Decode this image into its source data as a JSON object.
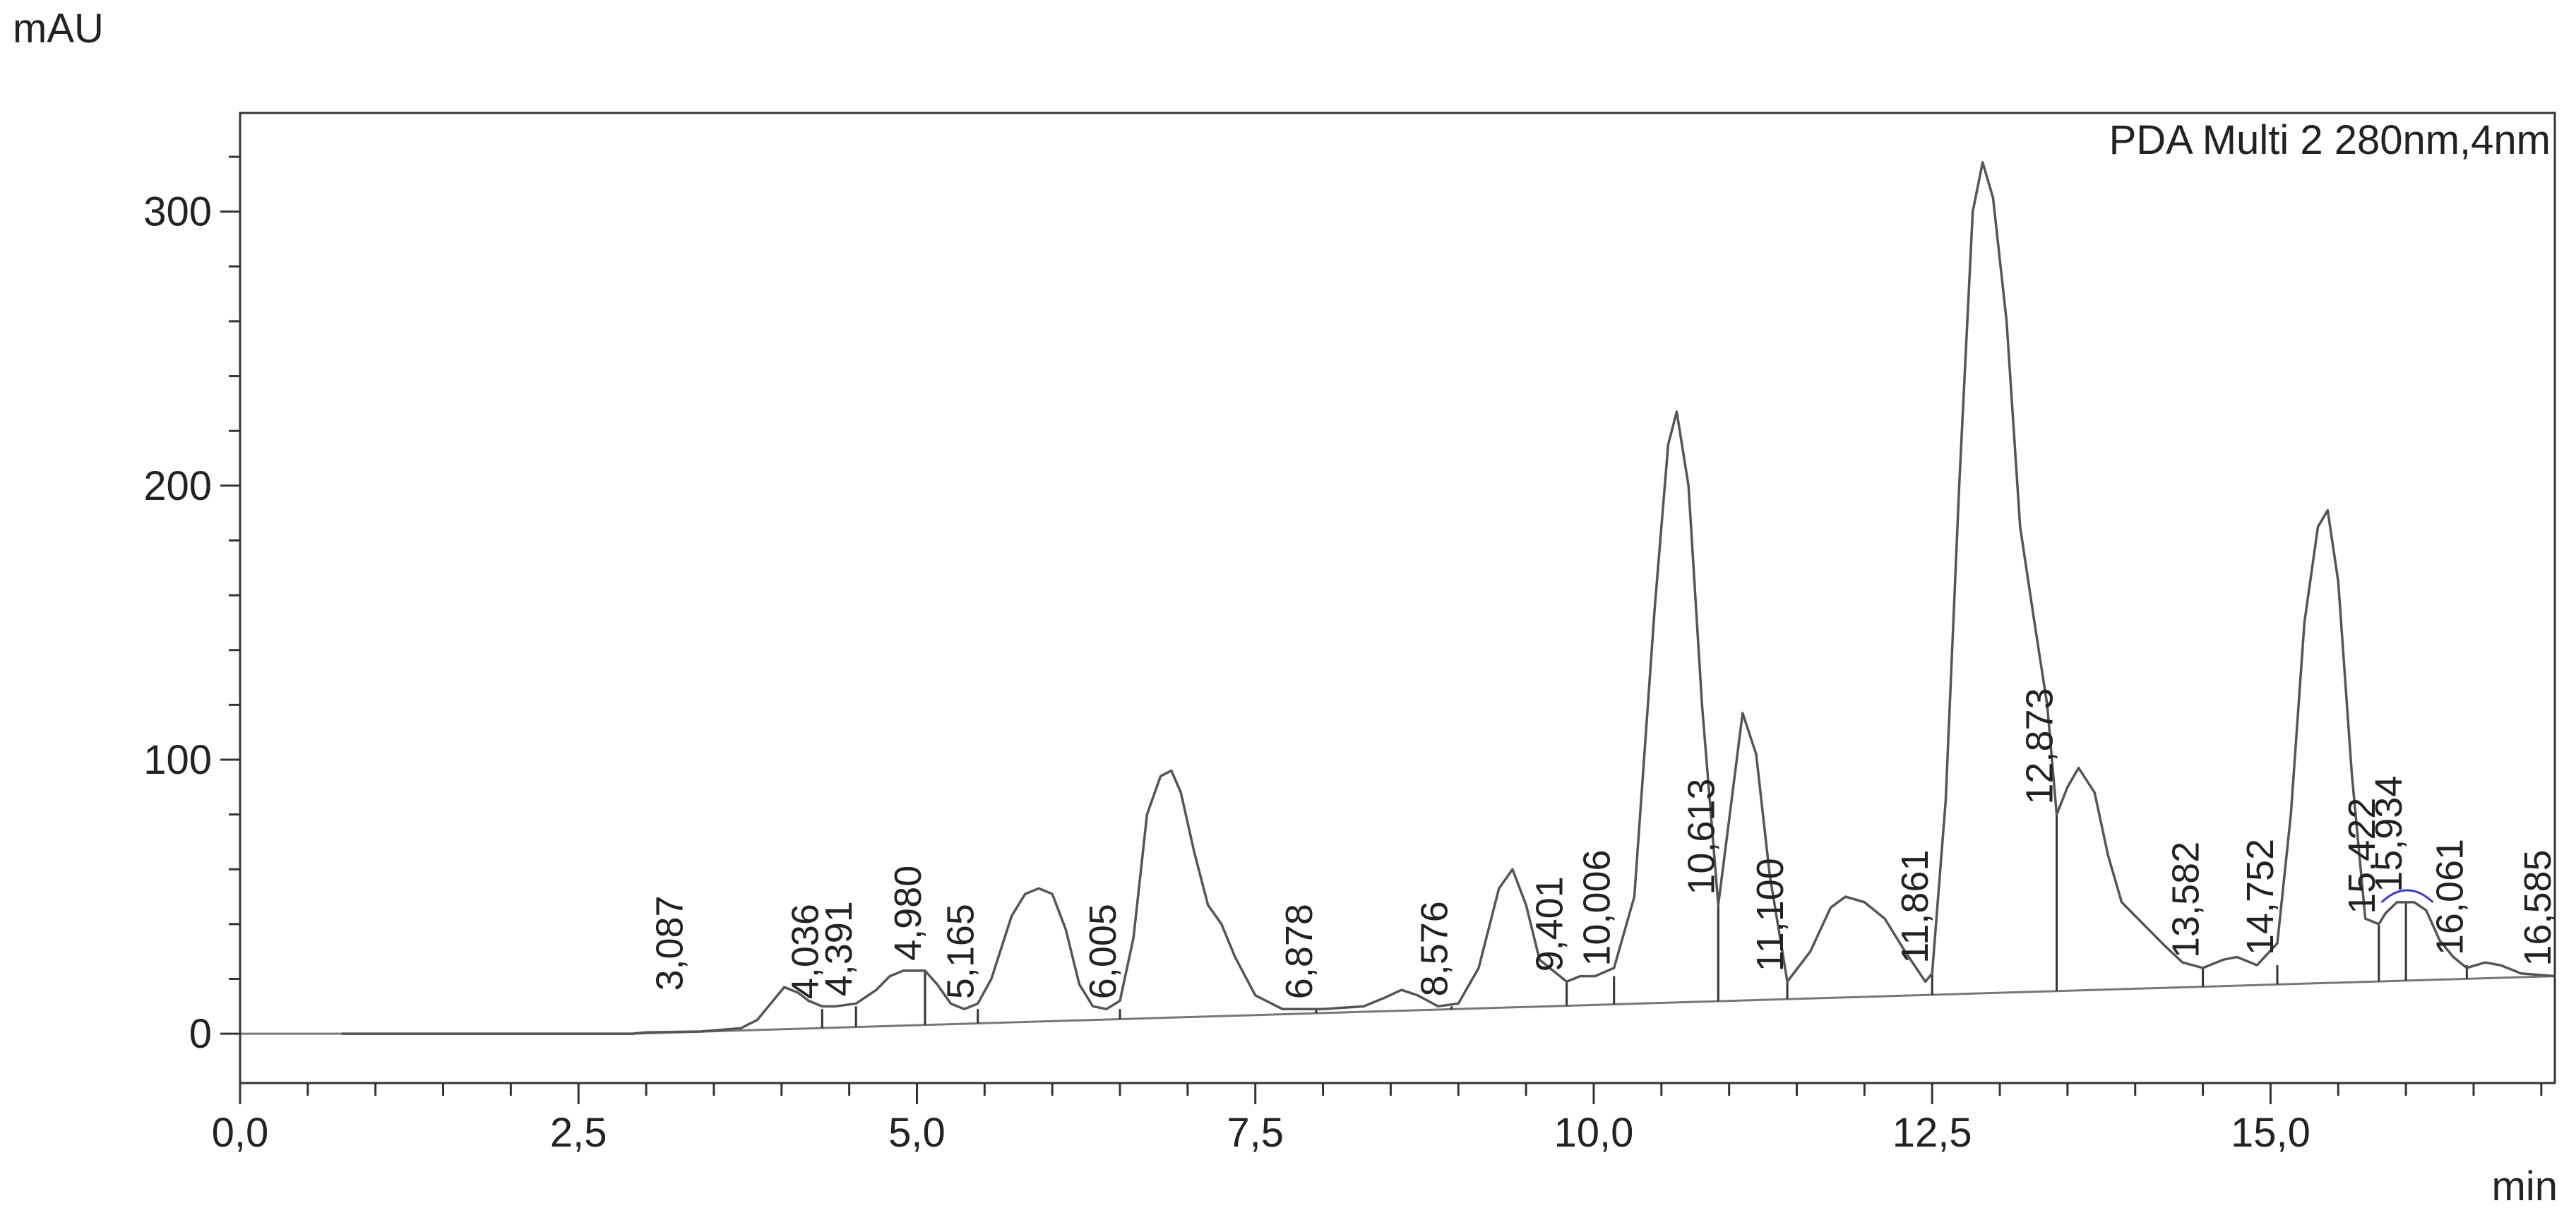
{
  "chart_data": {
    "type": "line",
    "y_unit": "mAU",
    "x_unit": "min",
    "legend": "PDA Multi 2 280nm,4nm",
    "xlim": [
      0.0,
      17.1
    ],
    "ylim": [
      -18,
      336
    ],
    "x_ticks": [
      {
        "value": 0.0,
        "label": "0,0"
      },
      {
        "value": 2.5,
        "label": "2,5"
      },
      {
        "value": 5.0,
        "label": "5,0"
      },
      {
        "value": 7.5,
        "label": "7,5"
      },
      {
        "value": 10.0,
        "label": "10,0"
      },
      {
        "value": 12.5,
        "label": "12,5"
      },
      {
        "value": 15.0,
        "label": "15,0"
      }
    ],
    "y_ticks": [
      {
        "value": 0,
        "label": "0"
      },
      {
        "value": 100,
        "label": "100"
      },
      {
        "value": 200,
        "label": "200"
      },
      {
        "value": 300,
        "label": "300"
      }
    ],
    "baseline": {
      "x": [
        0.0,
        2.9,
        17.1
      ],
      "y": [
        0.0,
        0.0,
        21.0
      ]
    },
    "series": [
      {
        "color": "#555555",
        "x": [
          0.75,
          2.9,
          3.0,
          3.4,
          3.7,
          3.82,
          3.92,
          4.02,
          4.12,
          4.2,
          4.3,
          4.4,
          4.55,
          4.7,
          4.8,
          4.9,
          4.98,
          5.06,
          5.15,
          5.25,
          5.35,
          5.45,
          5.55,
          5.7,
          5.8,
          5.9,
          6.0,
          6.1,
          6.2,
          6.3,
          6.4,
          6.5,
          6.6,
          6.7,
          6.8,
          6.88,
          6.95,
          7.05,
          7.15,
          7.25,
          7.35,
          7.5,
          7.7,
          8.0,
          8.3,
          8.45,
          8.58,
          8.7,
          8.85,
          9.0,
          9.15,
          9.3,
          9.4,
          9.5,
          9.6,
          9.8,
          9.9,
          10.01,
          10.15,
          10.3,
          10.45,
          10.55,
          10.613,
          10.7,
          10.8,
          10.92,
          11.0,
          11.1,
          11.2,
          11.3,
          11.43,
          11.6,
          11.75,
          11.86,
          12.0,
          12.15,
          12.3,
          12.45,
          12.5,
          12.6,
          12.7,
          12.8,
          12.873,
          12.95,
          13.05,
          13.15,
          13.25,
          13.35,
          13.42,
          13.5,
          13.582,
          13.7,
          13.8,
          13.9,
          14.0,
          14.2,
          14.35,
          14.5,
          14.65,
          14.752,
          14.9,
          15.05,
          15.15,
          15.25,
          15.35,
          15.422,
          15.5,
          15.6,
          15.7,
          15.8,
          15.85,
          15.934,
          16.0,
          16.061,
          16.15,
          16.25,
          16.35,
          16.45,
          16.585,
          16.7,
          16.85,
          17.1
        ],
        "y": [
          0,
          0,
          0.5,
          0.8,
          2,
          5,
          11,
          17,
          15,
          12,
          10,
          10,
          11,
          16,
          21,
          23,
          23,
          23,
          18,
          11,
          9,
          11,
          20,
          43,
          51,
          53,
          51,
          38,
          18,
          10,
          9,
          12,
          35,
          80,
          94,
          96,
          88,
          66,
          47,
          40,
          28,
          14,
          9,
          9,
          10,
          13,
          16,
          14,
          10,
          11,
          24,
          53,
          60,
          47,
          27,
          19,
          21,
          21,
          24,
          50,
          155,
          215,
          227,
          200,
          120,
          47,
          78,
          117,
          102,
          58,
          19,
          30,
          46,
          50,
          48,
          42,
          30,
          19,
          22,
          85,
          200,
          300,
          318,
          305,
          260,
          185,
          152,
          120,
          80,
          90,
          97,
          88,
          65,
          48,
          43,
          33,
          26,
          24,
          27,
          28,
          25,
          33,
          80,
          150,
          185,
          191,
          165,
          95,
          42,
          40,
          44,
          48,
          48,
          48,
          45,
          34,
          28,
          24,
          26,
          25,
          22,
          21
        ]
      }
    ],
    "peak_labels": [
      {
        "label": "3,087",
        "x": 3.3,
        "y": 12,
        "drop_line": false
      },
      {
        "label": "4,036",
        "x": 4.3,
        "y": 9,
        "drop_line": true
      },
      {
        "label": "4,391",
        "x": 4.55,
        "y": 10,
        "drop_line": true
      },
      {
        "label": "4,980",
        "x": 5.06,
        "y": 23,
        "drop_line": true
      },
      {
        "label": "5,165",
        "x": 5.45,
        "y": 9,
        "drop_line": true
      },
      {
        "label": "6,005",
        "x": 6.5,
        "y": 9,
        "drop_line": true
      },
      {
        "label": "6,878",
        "x": 7.95,
        "y": 9,
        "drop_line": true
      },
      {
        "label": "8,576",
        "x": 8.95,
        "y": 10,
        "drop_line": true
      },
      {
        "label": "9,401",
        "x": 9.8,
        "y": 19,
        "drop_line": true
      },
      {
        "label": "10,006",
        "x": 10.15,
        "y": 21,
        "drop_line": true
      },
      {
        "label": "10,613",
        "x": 10.92,
        "y": 47,
        "drop_line": true
      },
      {
        "label": "11,100",
        "x": 11.43,
        "y": 19,
        "drop_line": true
      },
      {
        "label": "11,861",
        "x": 12.5,
        "y": 22,
        "drop_line": true
      },
      {
        "label": "12,873",
        "x": 13.42,
        "y": 80,
        "drop_line": true
      },
      {
        "label": "13,582",
        "x": 14.5,
        "y": 24,
        "drop_line": true
      },
      {
        "label": "14,752",
        "x": 15.05,
        "y": 25,
        "drop_line": true
      },
      {
        "label": "15,422",
        "x": 15.8,
        "y": 40,
        "drop_line": true
      },
      {
        "label": "15,934",
        "x": 16.0,
        "y": 48,
        "drop_line": true
      },
      {
        "label": "16,061",
        "x": 16.45,
        "y": 25,
        "drop_line": true
      },
      {
        "label": "16,585",
        "x": 17.1,
        "y": 21,
        "drop_line": false
      }
    ],
    "annotation_color": "#3b3bd6"
  }
}
